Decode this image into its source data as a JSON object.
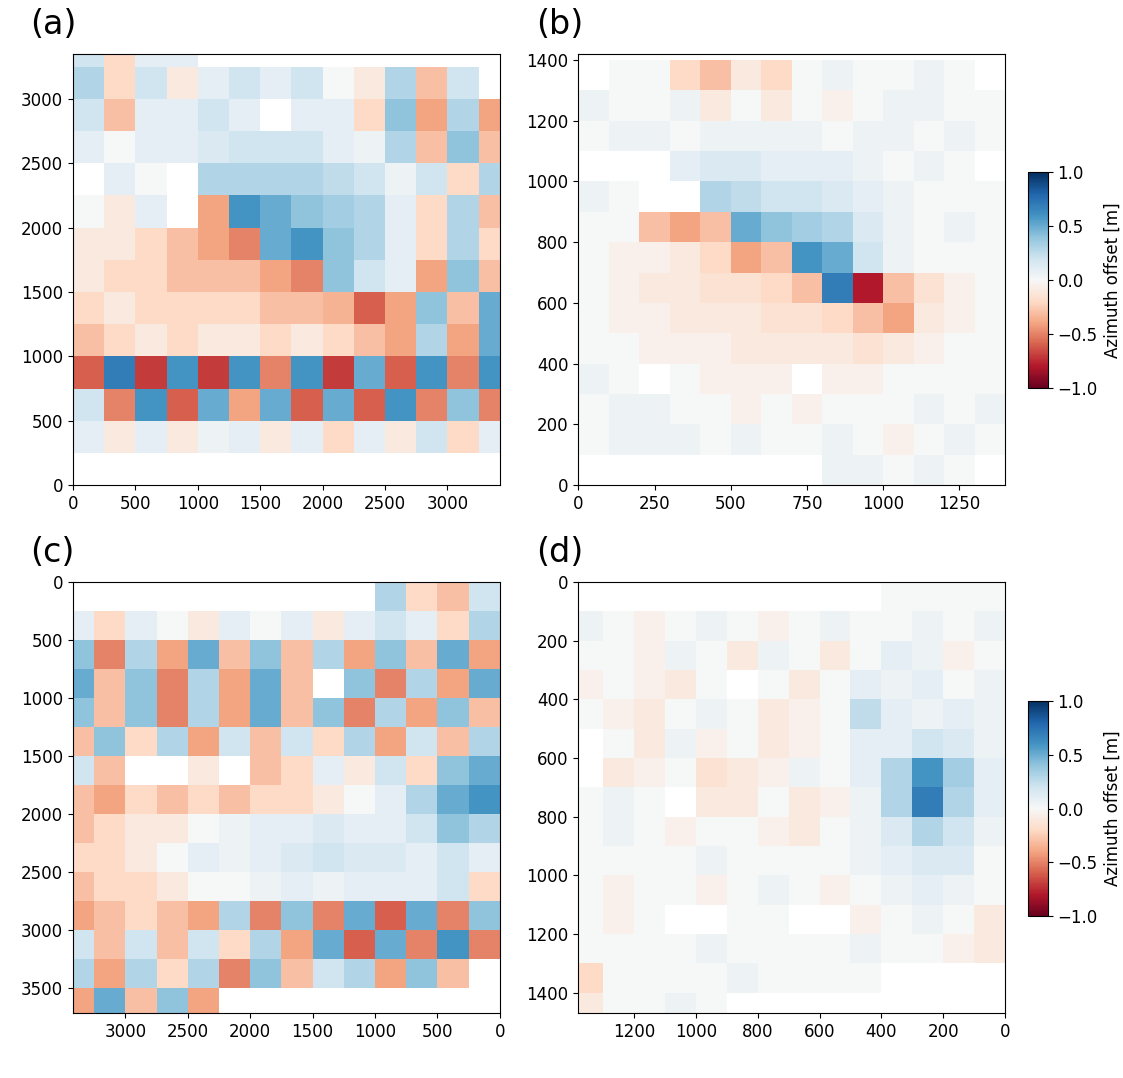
{
  "chart_data": [
    {
      "type": "heatmap",
      "title": "(a)",
      "x_edges": [
        0,
        250,
        500,
        750,
        1000,
        1250,
        1500,
        1750,
        2000,
        2250,
        2500,
        2750,
        3000,
        3250,
        3500
      ],
      "y_edges": [
        0,
        250,
        500,
        750,
        1000,
        1250,
        1500,
        1750,
        2000,
        2250,
        2500,
        2750,
        3000,
        3250,
        3500
      ],
      "cells": [
        [
          null,
          null,
          null,
          null,
          null,
          null,
          null,
          null,
          null,
          null,
          null,
          null,
          null,
          null
        ],
        [
          0.1,
          -0.1,
          0.1,
          -0.1,
          0.05,
          0.1,
          -0.1,
          0.1,
          -0.2,
          0.1,
          -0.1,
          0.2,
          -0.2,
          0.1
        ],
        [
          0.2,
          -0.5,
          0.6,
          -0.6,
          0.5,
          -0.4,
          0.5,
          -0.6,
          0.5,
          -0.6,
          0.6,
          -0.5,
          0.4,
          -0.5
        ],
        [
          -0.6,
          0.7,
          -0.7,
          0.6,
          -0.7,
          0.6,
          -0.5,
          0.6,
          -0.7,
          0.5,
          -0.6,
          0.6,
          -0.5,
          0.6
        ],
        [
          -0.3,
          -0.2,
          -0.1,
          -0.2,
          -0.1,
          -0.1,
          -0.2,
          -0.1,
          -0.2,
          -0.3,
          -0.4,
          0.3,
          -0.4,
          0.5
        ],
        [
          -0.2,
          -0.1,
          -0.2,
          -0.2,
          -0.2,
          -0.2,
          -0.3,
          -0.3,
          -0.35,
          -0.6,
          -0.4,
          0.4,
          -0.3,
          0.5
        ],
        [
          -0.1,
          -0.2,
          -0.2,
          -0.3,
          -0.3,
          -0.3,
          -0.4,
          -0.5,
          0.4,
          0.2,
          0.1,
          -0.4,
          0.4,
          -0.3
        ],
        [
          -0.1,
          -0.1,
          -0.2,
          -0.3,
          -0.4,
          -0.5,
          0.5,
          0.6,
          0.4,
          0.3,
          0.1,
          -0.2,
          0.3,
          -0.2
        ],
        [
          0.0,
          -0.1,
          0.1,
          null,
          -0.4,
          0.6,
          0.5,
          0.4,
          0.35,
          0.3,
          0.1,
          -0.2,
          0.3,
          -0.3
        ],
        [
          null,
          0.1,
          0.0,
          null,
          0.3,
          0.3,
          0.3,
          0.3,
          0.25,
          0.2,
          0.05,
          0.2,
          -0.2,
          0.3
        ],
        [
          0.1,
          0.0,
          0.1,
          0.1,
          0.15,
          0.2,
          0.2,
          0.2,
          0.1,
          0.05,
          0.3,
          -0.3,
          0.4,
          -0.3
        ],
        [
          0.2,
          -0.3,
          0.1,
          0.1,
          0.2,
          0.1,
          null,
          0.1,
          0.1,
          -0.2,
          0.4,
          -0.4,
          0.3,
          -0.4
        ],
        [
          0.3,
          -0.2,
          0.2,
          -0.1,
          0.1,
          0.2,
          0.1,
          0.2,
          0.0,
          -0.1,
          0.3,
          -0.3,
          0.2,
          null
        ],
        [
          0.2,
          -0.2,
          0.1,
          0.1,
          null,
          null,
          null,
          null,
          null,
          null,
          null,
          null,
          null,
          null
        ]
      ],
      "color_range": [
        -1,
        1
      ],
      "xlim": [
        0,
        3420
      ],
      "ylim": [
        0,
        3350
      ],
      "xticks": [
        0,
        500,
        1000,
        1500,
        2000,
        2500,
        3000
      ],
      "yticks": [
        0,
        500,
        1000,
        1500,
        2000,
        2500,
        3000
      ]
    },
    {
      "type": "heatmap",
      "title": "(b)",
      "x_edges": [
        0,
        100,
        200,
        300,
        400,
        500,
        600,
        700,
        800,
        900,
        1000,
        1100,
        1200,
        1300,
        1400
      ],
      "y_edges": [
        0,
        100,
        200,
        300,
        400,
        500,
        600,
        700,
        800,
        900,
        1000,
        1100,
        1200,
        1300,
        1400
      ],
      "cells": [
        [
          null,
          null,
          null,
          null,
          null,
          null,
          null,
          null,
          0.05,
          0.05,
          0.0,
          0.05,
          0.0,
          null
        ],
        [
          0.0,
          0.05,
          0.05,
          0.05,
          0.0,
          0.05,
          0.0,
          0.0,
          0.05,
          0.0,
          -0.05,
          0.0,
          0.05,
          0.0
        ],
        [
          0.0,
          0.05,
          0.05,
          0.0,
          0.0,
          -0.05,
          0.0,
          -0.05,
          0.0,
          0.0,
          0.0,
          0.05,
          0.0,
          0.05
        ],
        [
          0.05,
          0.0,
          null,
          0.0,
          -0.05,
          -0.05,
          -0.05,
          null,
          -0.05,
          -0.05,
          0.0,
          0.0,
          0.0,
          0.0
        ],
        [
          0.0,
          0.0,
          -0.05,
          -0.05,
          -0.05,
          -0.1,
          -0.1,
          -0.1,
          -0.1,
          -0.15,
          -0.1,
          -0.05,
          0.0,
          0.0
        ],
        [
          0.0,
          -0.05,
          -0.05,
          -0.1,
          -0.1,
          -0.1,
          -0.15,
          -0.15,
          -0.2,
          -0.3,
          -0.4,
          -0.1,
          -0.05,
          0.0
        ],
        [
          0.0,
          -0.05,
          -0.1,
          -0.1,
          -0.15,
          -0.15,
          -0.2,
          -0.3,
          0.7,
          -0.8,
          -0.3,
          -0.15,
          -0.05,
          0.0
        ],
        [
          0.0,
          -0.05,
          -0.05,
          -0.1,
          -0.2,
          -0.4,
          -0.3,
          0.6,
          0.5,
          0.2,
          0.05,
          0.0,
          0.0,
          0.0
        ],
        [
          0.0,
          0.0,
          -0.3,
          -0.4,
          -0.3,
          0.5,
          0.4,
          0.35,
          0.3,
          0.15,
          0.05,
          0.0,
          0.05,
          0.0
        ],
        [
          0.05,
          0.0,
          null,
          null,
          0.3,
          0.25,
          0.2,
          0.2,
          0.15,
          0.1,
          0.05,
          0.0,
          0.0,
          0.0
        ],
        [
          null,
          null,
          null,
          0.1,
          0.15,
          0.15,
          0.1,
          0.1,
          0.1,
          0.05,
          0.0,
          0.05,
          0.0,
          null
        ],
        [
          0.0,
          0.05,
          0.05,
          0.0,
          0.05,
          0.05,
          0.05,
          0.05,
          0.0,
          0.05,
          0.05,
          0.0,
          0.05,
          0.0
        ],
        [
          0.05,
          0.0,
          0.0,
          0.05,
          -0.1,
          0.0,
          -0.1,
          0.0,
          -0.05,
          0.0,
          0.05,
          0.05,
          0.0,
          0.0
        ],
        [
          null,
          0.0,
          0.0,
          -0.2,
          -0.3,
          -0.1,
          -0.2,
          0.0,
          0.05,
          0.0,
          0.0,
          0.05,
          0.0,
          null
        ]
      ],
      "xlim": [
        0,
        1400
      ],
      "ylim": [
        0,
        1420
      ],
      "xticks": [
        0,
        250,
        500,
        750,
        1000,
        1250
      ],
      "yticks": [
        0,
        200,
        400,
        600,
        800,
        1000,
        1200,
        1400
      ],
      "colorbar": {
        "label": "Azimuth offset [m]",
        "range": [
          -1,
          1
        ],
        "ticks": [
          {
            "value": -1,
            "label": "−1.0"
          },
          {
            "value": -0.5,
            "label": "−0.5"
          },
          {
            "value": 0,
            "label": "0.0"
          },
          {
            "value": 0.5,
            "label": "0.5"
          },
          {
            "value": 1,
            "label": "1.0"
          }
        ]
      }
    },
    {
      "type": "heatmap",
      "title": "(c)",
      "x_edges": [
        0,
        250,
        500,
        750,
        1000,
        1250,
        1500,
        1750,
        2000,
        2250,
        2500,
        2750,
        3000,
        3250,
        3500
      ],
      "y_edges": [
        0,
        250,
        500,
        750,
        1000,
        1250,
        1500,
        1750,
        2000,
        2250,
        2500,
        2750,
        3000,
        3250,
        3500,
        3750
      ],
      "cells": [
        [
          0.2,
          -0.3,
          -0.2,
          0.3,
          null,
          null,
          null,
          null,
          null,
          null,
          null,
          null,
          null,
          null
        ],
        [
          0.3,
          -0.2,
          0.1,
          0.2,
          0.1,
          -0.1,
          0.1,
          0.0,
          0.1,
          -0.1,
          0.0,
          0.1,
          -0.2,
          0.1
        ],
        [
          -0.4,
          0.5,
          -0.3,
          0.4,
          -0.4,
          0.3,
          -0.3,
          0.4,
          -0.3,
          0.5,
          -0.4,
          0.3,
          -0.5,
          0.4
        ],
        [
          0.5,
          -0.4,
          0.3,
          -0.5,
          0.4,
          null,
          -0.3,
          0.5,
          -0.4,
          0.3,
          -0.5,
          0.4,
          -0.3,
          0.5
        ],
        [
          -0.3,
          0.4,
          -0.4,
          0.3,
          -0.5,
          0.4,
          -0.3,
          0.5,
          -0.4,
          0.3,
          -0.5,
          0.4,
          -0.3,
          0.4
        ],
        [
          0.3,
          -0.3,
          0.2,
          -0.4,
          0.3,
          -0.2,
          0.2,
          -0.3,
          0.2,
          -0.4,
          0.3,
          -0.2,
          0.4,
          -0.3
        ],
        [
          0.5,
          0.4,
          -0.2,
          0.2,
          -0.1,
          0.1,
          -0.2,
          -0.3,
          null,
          -0.1,
          null,
          null,
          -0.3,
          0.2
        ],
        [
          0.6,
          0.5,
          0.3,
          0.1,
          0.0,
          -0.1,
          -0.2,
          -0.2,
          -0.3,
          -0.2,
          -0.3,
          -0.2,
          -0.4,
          -0.3
        ],
        [
          0.3,
          0.4,
          0.2,
          0.1,
          0.1,
          0.15,
          0.1,
          0.1,
          0.05,
          0.0,
          -0.1,
          -0.1,
          -0.2,
          -0.3
        ],
        [
          0.1,
          0.2,
          0.1,
          0.15,
          0.15,
          0.2,
          0.15,
          0.1,
          0.05,
          0.1,
          0.0,
          -0.1,
          -0.2,
          -0.2
        ],
        [
          -0.2,
          0.2,
          0.1,
          0.1,
          0.1,
          0.05,
          0.1,
          0.05,
          0.0,
          0.0,
          -0.1,
          -0.2,
          -0.2,
          -0.3
        ],
        [
          0.4,
          -0.5,
          0.5,
          -0.6,
          0.5,
          -0.5,
          0.4,
          -0.5,
          0.3,
          -0.4,
          -0.3,
          -0.2,
          -0.3,
          -0.4
        ],
        [
          -0.5,
          0.6,
          -0.5,
          0.5,
          -0.6,
          0.5,
          -0.4,
          0.3,
          -0.2,
          0.2,
          -0.3,
          0.2,
          -0.3,
          0.2
        ],
        [
          null,
          -0.3,
          0.4,
          -0.4,
          0.3,
          0.2,
          -0.3,
          0.4,
          -0.5,
          0.3,
          -0.2,
          0.3,
          -0.4,
          0.3
        ],
        [
          null,
          null,
          null,
          null,
          null,
          null,
          null,
          null,
          null,
          -0.4,
          0.4,
          -0.3,
          0.5,
          -0.4
        ]
      ],
      "color_range": [
        -1,
        1
      ],
      "xlim": [
        3420,
        0
      ],
      "ylim": [
        3720,
        0
      ],
      "xticks": [
        3000,
        2500,
        2000,
        1500,
        1000,
        500,
        0
      ],
      "yticks": [
        0,
        500,
        1000,
        1500,
        2000,
        2500,
        3000,
        3500
      ]
    },
    {
      "type": "heatmap",
      "title": "(d)",
      "x_edges": [
        0,
        100,
        200,
        300,
        400,
        500,
        600,
        700,
        800,
        900,
        1000,
        1100,
        1200,
        1300,
        1400
      ],
      "y_edges": [
        0,
        100,
        200,
        300,
        400,
        500,
        600,
        700,
        800,
        900,
        1000,
        1100,
        1200,
        1300,
        1400,
        1500
      ],
      "cells": [
        [
          0.0,
          0.0,
          0.0,
          0.0,
          null,
          null,
          null,
          null,
          null,
          null,
          null,
          null,
          null,
          null
        ],
        [
          0.05,
          0.0,
          0.05,
          0.0,
          0.0,
          0.05,
          0.0,
          -0.05,
          0.0,
          0.05,
          0.0,
          -0.05,
          0.0,
          0.05
        ],
        [
          0.0,
          -0.05,
          0.05,
          0.1,
          0.0,
          -0.1,
          0.0,
          0.05,
          -0.1,
          0.0,
          0.05,
          -0.05,
          0.0,
          0.0
        ],
        [
          0.05,
          0.0,
          0.1,
          0.05,
          0.1,
          0.0,
          -0.1,
          0.0,
          null,
          0.0,
          -0.1,
          -0.05,
          0.0,
          -0.05
        ],
        [
          0.05,
          0.1,
          0.05,
          0.1,
          0.25,
          0.0,
          -0.05,
          -0.1,
          0.0,
          0.05,
          0.0,
          -0.1,
          -0.05,
          0.0
        ],
        [
          0.05,
          0.15,
          0.2,
          0.1,
          0.1,
          0.0,
          -0.05,
          -0.1,
          0.0,
          -0.05,
          0.05,
          -0.1,
          0.0,
          null
        ],
        [
          0.1,
          0.35,
          0.6,
          0.3,
          0.1,
          0.0,
          0.05,
          -0.05,
          -0.1,
          -0.15,
          0.0,
          -0.05,
          -0.1,
          null
        ],
        [
          0.1,
          0.3,
          0.7,
          0.3,
          0.05,
          -0.05,
          -0.1,
          0.0,
          -0.1,
          -0.1,
          null,
          0.0,
          0.05,
          0.0
        ],
        [
          0.05,
          0.2,
          0.3,
          0.15,
          0.05,
          0.0,
          -0.1,
          -0.05,
          0.0,
          0.0,
          -0.05,
          0.0,
          0.05,
          0.0
        ],
        [
          0.0,
          0.15,
          0.15,
          0.1,
          0.05,
          0.0,
          0.0,
          0.0,
          0.0,
          0.05,
          0.0,
          0.0,
          0.0,
          0.0
        ],
        [
          0.0,
          0.05,
          0.1,
          0.05,
          0.0,
          -0.05,
          0.0,
          0.05,
          0.0,
          -0.05,
          0.0,
          0.0,
          -0.05,
          0.0
        ],
        [
          -0.1,
          0.0,
          0.05,
          0.0,
          -0.05,
          null,
          null,
          0.0,
          0.0,
          null,
          null,
          0.0,
          -0.05,
          0.0
        ],
        [
          -0.1,
          -0.05,
          0.0,
          0.0,
          0.05,
          0.0,
          0.0,
          0.0,
          0.0,
          0.05,
          0.0,
          0.0,
          0.0,
          0.0
        ],
        [
          null,
          null,
          null,
          null,
          0.0,
          0.0,
          0.0,
          0.0,
          0.05,
          0.0,
          0.0,
          0.0,
          0.0,
          -0.2
        ],
        [
          null,
          null,
          null,
          null,
          null,
          null,
          null,
          null,
          null,
          0.0,
          0.05,
          0.0,
          0.0,
          -0.1
        ]
      ],
      "xlim": [
        1380,
        0
      ],
      "ylim": [
        1470,
        0
      ],
      "xticks": [
        1200,
        1000,
        800,
        600,
        400,
        200,
        0
      ],
      "yticks": [
        0,
        200,
        400,
        600,
        800,
        1000,
        1200,
        1400
      ],
      "colorbar": {
        "label": "Azimuth offset [m]",
        "range": [
          -1,
          1
        ],
        "ticks": [
          {
            "value": -1,
            "label": "−1.0"
          },
          {
            "value": -0.5,
            "label": "−0.5"
          },
          {
            "value": 0,
            "label": "0.0"
          },
          {
            "value": 0.5,
            "label": "0.5"
          },
          {
            "value": 1,
            "label": "1.0"
          }
        ]
      }
    }
  ]
}
